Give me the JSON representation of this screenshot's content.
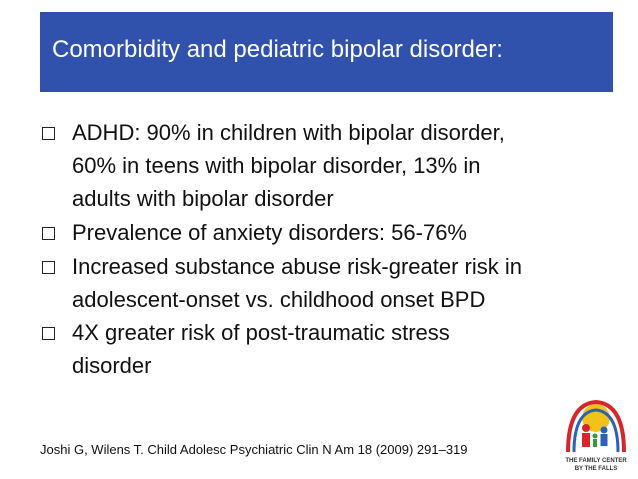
{
  "header": {
    "title": "Comorbidity and pediatric bipolar disorder:"
  },
  "bullets": [
    {
      "lines": [
        "ADHD: 90% in children with bipolar disorder,",
        "60% in teens with bipolar disorder, 13% in",
        "adults with bipolar disorder"
      ]
    },
    {
      "lines": [
        "Prevalence of anxiety disorders: 56-76%"
      ]
    },
    {
      "lines": [
        "Increased substance abuse risk-greater risk in",
        "adolescent-onset vs. childhood onset BPD"
      ]
    },
    {
      "lines": [
        "4X greater risk of post-traumatic stress",
        "disorder"
      ]
    }
  ],
  "citation": "Joshi G, Wilens T.  Child Adolesc Psychiatric Clin N Am 18 (2009) 291–319",
  "logo": {
    "lines": [
      "THE FAMILY CENTER",
      "BY THE FALLS"
    ]
  }
}
